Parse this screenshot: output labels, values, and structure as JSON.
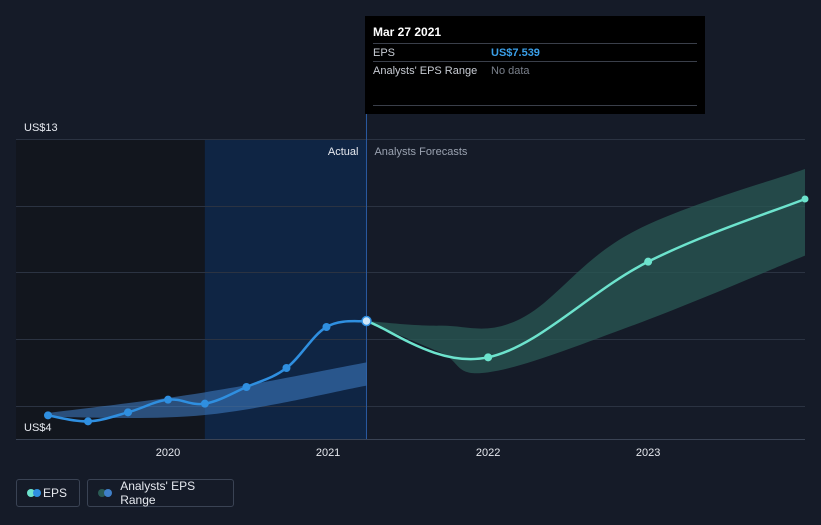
{
  "chart_data": {
    "type": "line",
    "y_axis_labels": {
      "top": "US$13",
      "bottom": "US$4"
    },
    "ylim": [
      4,
      13
    ],
    "xlim": [
      2019.25,
      2023.98
    ],
    "x_ticks": [
      {
        "value": 2020,
        "label": "2020"
      },
      {
        "value": 2021,
        "label": "2021"
      },
      {
        "value": 2022,
        "label": "2022"
      },
      {
        "value": 2023,
        "label": "2023"
      }
    ],
    "gridlines": [
      13,
      11,
      9,
      7,
      5,
      4
    ],
    "split_labels": {
      "actual": "Actual",
      "forecast": "Analysts Forecasts"
    },
    "actual_start": 2020.23,
    "split_x": 2021.24,
    "series": [
      {
        "name": "EPS",
        "kind": "actual",
        "color": "#2f8fe0",
        "points": [
          {
            "x": 2019.25,
            "y": 4.71
          },
          {
            "x": 2019.5,
            "y": 4.53
          },
          {
            "x": 2019.75,
            "y": 4.8
          },
          {
            "x": 2020.0,
            "y": 5.18
          },
          {
            "x": 2020.23,
            "y": 5.06
          },
          {
            "x": 2020.49,
            "y": 5.56
          },
          {
            "x": 2020.74,
            "y": 6.13
          },
          {
            "x": 2020.99,
            "y": 7.36
          },
          {
            "x": 2021.24,
            "y": 7.539
          }
        ]
      },
      {
        "name": "EPS",
        "kind": "forecast",
        "color": "#6de3cd",
        "points": [
          {
            "x": 2021.24,
            "y": 7.539
          },
          {
            "x": 2022.0,
            "y": 6.45
          },
          {
            "x": 2023.0,
            "y": 9.32
          },
          {
            "x": 2023.98,
            "y": 11.2
          }
        ]
      }
    ],
    "range_bands": [
      {
        "name": "Analysts' EPS Range",
        "kind": "actual",
        "color": "#3f7fc8",
        "upper": [
          {
            "x": 2019.25,
            "y": 4.78
          },
          {
            "x": 2020.23,
            "y": 5.4
          },
          {
            "x": 2021.24,
            "y": 6.3
          }
        ],
        "lower": [
          {
            "x": 2019.25,
            "y": 4.66
          },
          {
            "x": 2020.23,
            "y": 4.72
          },
          {
            "x": 2021.24,
            "y": 5.6
          }
        ]
      },
      {
        "name": "Analysts' EPS Range",
        "kind": "forecast",
        "color": "#2a5a54",
        "upper": [
          {
            "x": 2021.24,
            "y": 7.54
          },
          {
            "x": 2021.7,
            "y": 7.4
          },
          {
            "x": 2022.2,
            "y": 7.6
          },
          {
            "x": 2022.9,
            "y": 10.2
          },
          {
            "x": 2023.98,
            "y": 12.1
          }
        ],
        "lower": [
          {
            "x": 2021.24,
            "y": 7.54
          },
          {
            "x": 2021.7,
            "y": 6.6
          },
          {
            "x": 2022.0,
            "y": 6.0
          },
          {
            "x": 2022.9,
            "y": 7.4
          },
          {
            "x": 2023.98,
            "y": 9.5
          }
        ]
      }
    ]
  },
  "tooltip": {
    "date": "Mar 27 2021",
    "eps_label": "EPS",
    "eps_value": "US$7.539",
    "range_label": "Analysts' EPS Range",
    "range_value": "No data"
  },
  "legend": {
    "eps_label": "EPS",
    "range_label": "Analysts' EPS Range",
    "eps_colors": [
      "#6de3cd",
      "#2f8fe0"
    ],
    "range_colors": [
      "#2a5a54",
      "#3f7fc8"
    ]
  },
  "colors": {
    "background": "#151b28",
    "gridline": "#2b3342",
    "actual_shade": "#0f2544",
    "history_shade": "#12161e",
    "axis_text": "#e6e9ef",
    "muted_text": "#9aa2b0"
  }
}
